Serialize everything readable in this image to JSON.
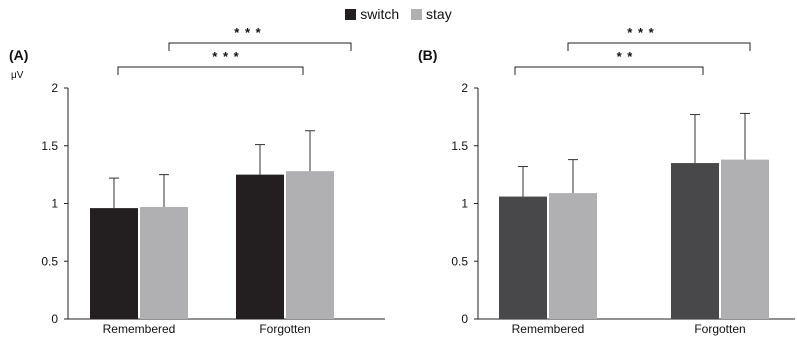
{
  "legend": {
    "items": [
      {
        "label": "switch",
        "color": "#231f20"
      },
      {
        "label": "stay",
        "color": "#b0b0b2"
      }
    ]
  },
  "chart_data": [
    {
      "type": "bar",
      "panel_label": "(A)",
      "ylabel": "μV",
      "ylim": [
        0,
        2
      ],
      "yticks": [
        "0",
        "0.5",
        "1",
        "1.5",
        "2"
      ],
      "categories": [
        "Remembered",
        "Forgotten"
      ],
      "series": [
        {
          "name": "switch",
          "color": "#231f20",
          "values": [
            0.96,
            1.25
          ],
          "errors": [
            0.26,
            0.26
          ]
        },
        {
          "name": "stay",
          "color": "#b0b0b2",
          "values": [
            0.97,
            1.28
          ],
          "errors": [
            0.28,
            0.35
          ]
        }
      ],
      "significance": [
        {
          "label": "* * *",
          "from": "Remembered",
          "to": "Forgotten"
        },
        {
          "label": "* * *",
          "from": "Remembered",
          "to": "Forgotten"
        }
      ],
      "legend_position": "top-center",
      "grid": false
    },
    {
      "type": "bar",
      "panel_label": "(B)",
      "ylabel": "",
      "ylim": [
        0,
        2
      ],
      "yticks": [
        "0",
        "0.5",
        "1",
        "1.5",
        "2"
      ],
      "categories": [
        "Remembered",
        "Forgotten"
      ],
      "series": [
        {
          "name": "switch",
          "color": "#48484a",
          "values": [
            1.06,
            1.35
          ],
          "errors": [
            0.26,
            0.42
          ]
        },
        {
          "name": "stay",
          "color": "#b0b0b2",
          "values": [
            1.09,
            1.38
          ],
          "errors": [
            0.29,
            0.4
          ]
        }
      ],
      "significance": [
        {
          "label": "* * *",
          "from": "Remembered",
          "to": "Forgotten"
        },
        {
          "label": "* *",
          "from": "Remembered",
          "to": "Forgotten"
        }
      ],
      "legend_position": "top-center",
      "grid": false
    }
  ]
}
